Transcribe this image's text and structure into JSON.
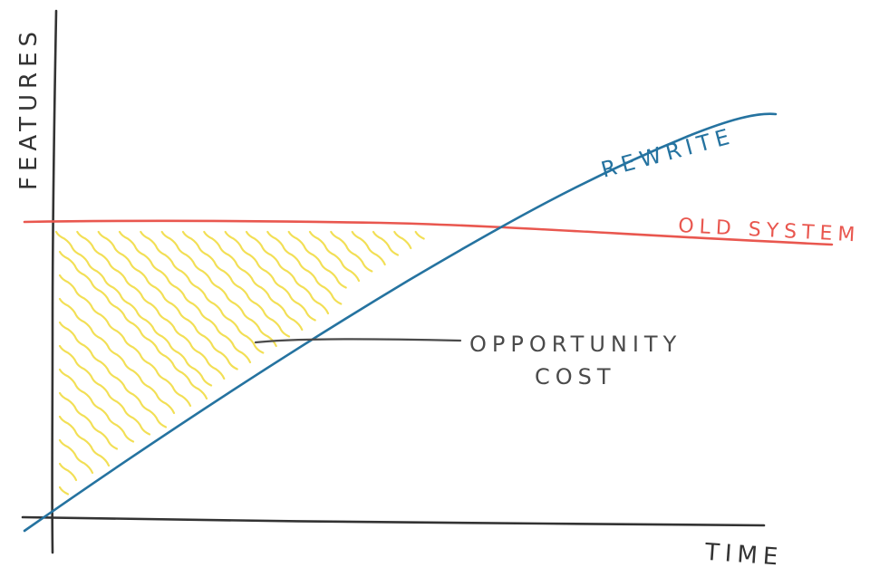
{
  "labels": {
    "y_axis": "FEATURES",
    "x_axis": "TIME",
    "rewrite": "REWRITE",
    "old_system": "OLD SYSTEM",
    "opportunity_line1": "OPPORTUNITY",
    "opportunity_line2": "COST"
  },
  "colors": {
    "axis": "#333333",
    "rewrite": "#2573a0",
    "old_system": "#e9574f",
    "hatch": "#f2df55",
    "annotation": "#4a4a4a"
  }
}
